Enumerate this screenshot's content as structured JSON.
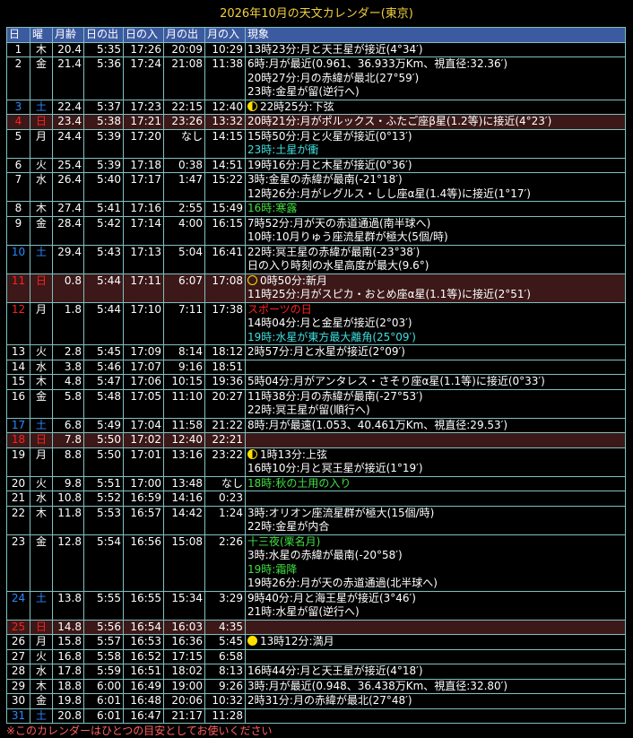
{
  "title": "2026年10月の天文カレンダー(東京)",
  "headers": [
    "日",
    "曜",
    "月齢",
    "日の出",
    "日の入",
    "月の出",
    "月の入",
    "現象"
  ],
  "colors": {
    "saturday": "#2888ff",
    "sunday": "#ff2020",
    "sunday_bg": "#3c1818",
    "header_bg": "#3c5aa0",
    "planet_event": "#40e0e0",
    "season_event": "#40e040",
    "holiday_event": "#ff2020",
    "title": "#f0d040",
    "note": "#ff6060"
  },
  "rows": [
    {
      "d": "1",
      "w": "木",
      "age": "20.4",
      "sr": "5:35",
      "ss": "17:26",
      "mr": "20:09",
      "ms": "10:29",
      "t": "",
      "ev": [
        {
          "text": "13時23分:月と天王星が接近(4°34′)"
        }
      ]
    },
    {
      "d": "2",
      "w": "金",
      "age": "21.4",
      "sr": "5:36",
      "ss": "17:24",
      "mr": "21:08",
      "ms": "11:38",
      "t": "",
      "ev": [
        {
          "text": "6時:月が最近(0.961、36.933万Km、視直径:32.36′)"
        },
        {
          "text": "20時27分:月の赤緯が最北(27°59′)"
        },
        {
          "text": "23時:金星が留(逆行へ)"
        }
      ]
    },
    {
      "d": "3",
      "w": "土",
      "age": "22.4",
      "sr": "5:37",
      "ss": "17:23",
      "mr": "22:15",
      "ms": "12:40",
      "t": "sat",
      "ev": [
        {
          "text": "22時25分:下弦",
          "icon": "last"
        }
      ]
    },
    {
      "d": "4",
      "w": "日",
      "age": "23.4",
      "sr": "5:38",
      "ss": "17:21",
      "mr": "23:26",
      "ms": "13:32",
      "t": "sun",
      "ev": [
        {
          "text": "20時21分:月がポルックス・ふたご座β星(1.2等)に接近(4°23′)"
        }
      ]
    },
    {
      "d": "5",
      "w": "月",
      "age": "24.4",
      "sr": "5:39",
      "ss": "17:20",
      "mr": "なし",
      "ms": "14:15",
      "t": "",
      "ev": [
        {
          "text": "15時50分:月と火星が接近(0°13′)"
        },
        {
          "text": "23時:土星が衝",
          "c": "cyan"
        }
      ]
    },
    {
      "d": "6",
      "w": "火",
      "age": "25.4",
      "sr": "5:39",
      "ss": "17:18",
      "mr": "0:38",
      "ms": "14:51",
      "t": "",
      "ev": [
        {
          "text": "19時16分:月と木星が接近(0°36′)"
        }
      ]
    },
    {
      "d": "7",
      "w": "水",
      "age": "26.4",
      "sr": "5:40",
      "ss": "17:17",
      "mr": "1:47",
      "ms": "15:22",
      "t": "",
      "ev": [
        {
          "text": "3時:金星の赤緯が最南(-21°18′)"
        },
        {
          "text": "12時26分:月がレグルス・しし座α星(1.4等)に接近(1°17′)"
        }
      ]
    },
    {
      "d": "8",
      "w": "木",
      "age": "27.4",
      "sr": "5:41",
      "ss": "17:16",
      "mr": "2:55",
      "ms": "15:49",
      "t": "",
      "ev": [
        {
          "text": "16時:寒露",
          "c": "green"
        }
      ]
    },
    {
      "d": "9",
      "w": "金",
      "age": "28.4",
      "sr": "5:42",
      "ss": "17:14",
      "mr": "4:00",
      "ms": "16:15",
      "t": "",
      "ev": [
        {
          "text": "7時52分:月が天の赤道通過(南半球へ)"
        },
        {
          "text": "10時:10月りゅう座流星群が極大(5個/時)"
        }
      ]
    },
    {
      "d": "10",
      "w": "土",
      "age": "29.4",
      "sr": "5:43",
      "ss": "17:13",
      "mr": "5:04",
      "ms": "16:41",
      "t": "sat",
      "ev": [
        {
          "text": "22時:冥王星の赤緯が最南(-23°38′)"
        },
        {
          "text": "日の入り時刻の水星高度が最大(9.6°)"
        }
      ]
    },
    {
      "d": "11",
      "w": "日",
      "age": "0.8",
      "sr": "5:44",
      "ss": "17:11",
      "mr": "6:07",
      "ms": "17:08",
      "t": "sun",
      "ev": [
        {
          "text": "0時50分:新月",
          "icon": "new"
        },
        {
          "text": "11時25分:月がスピカ・おとめ座α星(1.1等)に接近(2°51′)"
        }
      ]
    },
    {
      "d": "12",
      "w": "月",
      "age": "1.8",
      "sr": "5:44",
      "ss": "17:10",
      "mr": "7:11",
      "ms": "17:38",
      "t": "hol",
      "ev": [
        {
          "text": "スポーツの日",
          "c": "red"
        },
        {
          "text": "14時04分:月と金星が接近(2°03′)"
        },
        {
          "text": "19時:水星が東方最大離角(25°09′)",
          "c": "cyan"
        }
      ]
    },
    {
      "d": "13",
      "w": "火",
      "age": "2.8",
      "sr": "5:45",
      "ss": "17:09",
      "mr": "8:14",
      "ms": "18:12",
      "t": "",
      "ev": [
        {
          "text": "2時57分:月と水星が接近(2°09′)"
        }
      ]
    },
    {
      "d": "14",
      "w": "水",
      "age": "3.8",
      "sr": "5:46",
      "ss": "17:07",
      "mr": "9:16",
      "ms": "18:51",
      "t": "",
      "ev": []
    },
    {
      "d": "15",
      "w": "木",
      "age": "4.8",
      "sr": "5:47",
      "ss": "17:06",
      "mr": "10:15",
      "ms": "19:36",
      "t": "",
      "ev": [
        {
          "text": "5時04分:月がアンタレス・さそり座α星(1.1等)に接近(0°33′)"
        }
      ]
    },
    {
      "d": "16",
      "w": "金",
      "age": "5.8",
      "sr": "5:48",
      "ss": "17:05",
      "mr": "11:10",
      "ms": "20:27",
      "t": "",
      "ev": [
        {
          "text": "11時38分:月の赤緯が最南(-27°53′)"
        },
        {
          "text": "22時:冥王星が留(順行へ)"
        }
      ]
    },
    {
      "d": "17",
      "w": "土",
      "age": "6.8",
      "sr": "5:49",
      "ss": "17:04",
      "mr": "11:58",
      "ms": "21:22",
      "t": "sat",
      "ev": [
        {
          "text": "8時:月が最遠(1.053、40.461万Km、視直径:29.53′)"
        }
      ]
    },
    {
      "d": "18",
      "w": "日",
      "age": "7.8",
      "sr": "5:50",
      "ss": "17:02",
      "mr": "12:40",
      "ms": "22:21",
      "t": "sun",
      "ev": []
    },
    {
      "d": "19",
      "w": "月",
      "age": "8.8",
      "sr": "5:50",
      "ss": "17:01",
      "mr": "13:16",
      "ms": "23:22",
      "t": "",
      "ev": [
        {
          "text": "1時13分:上弦",
          "icon": "first"
        },
        {
          "text": "16時10分:月と冥王星が接近(1°19′)"
        }
      ]
    },
    {
      "d": "20",
      "w": "火",
      "age": "9.8",
      "sr": "5:51",
      "ss": "17:00",
      "mr": "13:48",
      "ms": "なし",
      "t": "",
      "ev": [
        {
          "text": "18時:秋の土用の入り",
          "c": "green"
        }
      ]
    },
    {
      "d": "21",
      "w": "水",
      "age": "10.8",
      "sr": "5:52",
      "ss": "16:59",
      "mr": "14:16",
      "ms": "0:23",
      "t": "",
      "ev": []
    },
    {
      "d": "22",
      "w": "木",
      "age": "11.8",
      "sr": "5:53",
      "ss": "16:57",
      "mr": "14:42",
      "ms": "1:24",
      "t": "",
      "ev": [
        {
          "text": "3時:オリオン座流星群が極大(15個/時)"
        },
        {
          "text": "22時:金星が内合"
        }
      ]
    },
    {
      "d": "23",
      "w": "金",
      "age": "12.8",
      "sr": "5:54",
      "ss": "16:56",
      "mr": "15:08",
      "ms": "2:26",
      "t": "",
      "ev": [
        {
          "text": "十三夜(栗名月)",
          "c": "green"
        },
        {
          "text": "3時:水星の赤緯が最南(-20°58′)"
        },
        {
          "text": "19時:霜降",
          "c": "green"
        },
        {
          "text": "19時26分:月が天の赤道通過(北半球へ)"
        }
      ]
    },
    {
      "d": "24",
      "w": "土",
      "age": "13.8",
      "sr": "5:55",
      "ss": "16:55",
      "mr": "15:34",
      "ms": "3:29",
      "t": "sat",
      "ev": [
        {
          "text": "9時40分:月と海王星が接近(3°46′)"
        },
        {
          "text": "21時:水星が留(逆行へ)"
        }
      ]
    },
    {
      "d": "25",
      "w": "日",
      "age": "14.8",
      "sr": "5:56",
      "ss": "16:54",
      "mr": "16:03",
      "ms": "4:35",
      "t": "sun",
      "ev": []
    },
    {
      "d": "26",
      "w": "月",
      "age": "15.8",
      "sr": "5:57",
      "ss": "16:53",
      "mr": "16:36",
      "ms": "5:45",
      "t": "",
      "ev": [
        {
          "text": "13時12分:満月",
          "icon": "full"
        }
      ]
    },
    {
      "d": "27",
      "w": "火",
      "age": "16.8",
      "sr": "5:58",
      "ss": "16:52",
      "mr": "17:15",
      "ms": "6:58",
      "t": "",
      "ev": []
    },
    {
      "d": "28",
      "w": "水",
      "age": "17.8",
      "sr": "5:59",
      "ss": "16:51",
      "mr": "18:02",
      "ms": "8:13",
      "t": "",
      "ev": [
        {
          "text": "16時44分:月と天王星が接近(4°18′)"
        }
      ]
    },
    {
      "d": "29",
      "w": "木",
      "age": "18.8",
      "sr": "6:00",
      "ss": "16:49",
      "mr": "19:00",
      "ms": "9:26",
      "t": "",
      "ev": [
        {
          "text": "3時:月が最近(0.948、36.438万Km、視直径:32.80′)"
        }
      ]
    },
    {
      "d": "30",
      "w": "金",
      "age": "19.8",
      "sr": "6:01",
      "ss": "16:48",
      "mr": "20:06",
      "ms": "10:32",
      "t": "",
      "ev": [
        {
          "text": "2時31分:月の赤緯が最北(27°48′)"
        }
      ]
    },
    {
      "d": "31",
      "w": "土",
      "age": "20.8",
      "sr": "6:01",
      "ss": "16:47",
      "mr": "21:17",
      "ms": "11:28",
      "t": "sat",
      "ev": []
    }
  ],
  "note": "※このカレンダーはひとつの目安としてお使いください"
}
